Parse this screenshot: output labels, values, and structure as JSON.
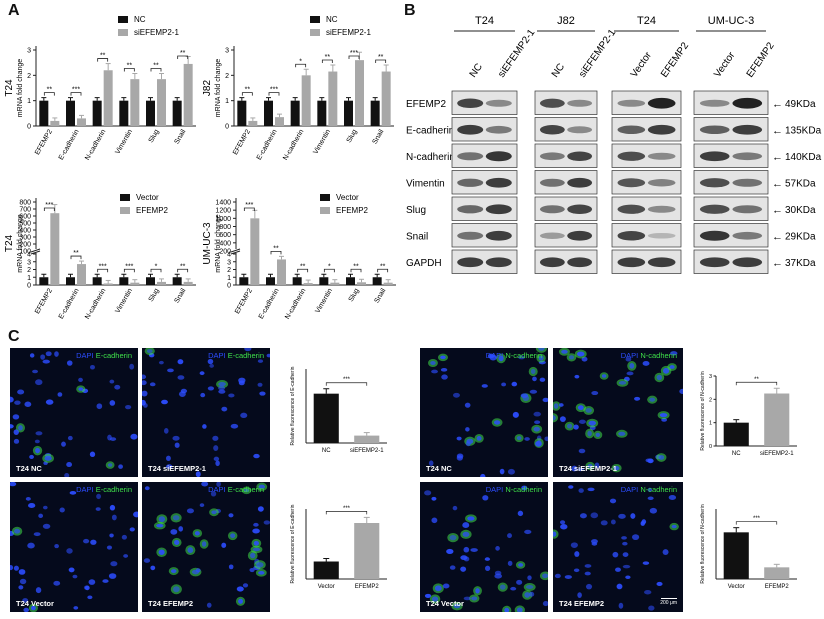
{
  "figure": {
    "panel_labels": [
      "A",
      "B",
      "C"
    ],
    "colors": {
      "black": "#111111",
      "grey": "#a8a8a8",
      "blot_bg": "#e4e4e4",
      "band": "#1a1a1a",
      "micro_bg": "#050a1c",
      "dapi": "#2c4dff",
      "marker": "#3fe04a"
    }
  },
  "chart_data": [
    {
      "type": "bar",
      "panel": "A",
      "ylabel_main": "T24",
      "ylabel": "mRNA fold change",
      "categories": [
        "EFEMP2",
        "E-cadherin",
        "N-cadherin",
        "Vimentin",
        "Slug",
        "Snail"
      ],
      "yticks": [
        "0",
        "1",
        "2",
        "3"
      ],
      "ylim": [
        0,
        3
      ],
      "series": [
        {
          "name": "NC",
          "values": [
            1.0,
            1.0,
            1.0,
            1.0,
            1.0,
            1.0
          ]
        },
        {
          "name": "siEFEMP2-1",
          "values": [
            0.2,
            0.3,
            2.2,
            1.85,
            1.85,
            2.45
          ]
        }
      ],
      "significance": [
        "**",
        "***",
        "**",
        "**",
        "**",
        "**"
      ]
    },
    {
      "type": "bar",
      "panel": "A",
      "ylabel_main": "J82",
      "ylabel": "mRNA fold change",
      "categories": [
        "EFEMP2",
        "E-cadherin",
        "N-cadherin",
        "Vimentin",
        "Slug",
        "Snail"
      ],
      "yticks": [
        "0",
        "1",
        "2",
        "3"
      ],
      "ylim": [
        0,
        3
      ],
      "series": [
        {
          "name": "NC",
          "values": [
            1.0,
            1.0,
            1.0,
            1.0,
            1.0,
            1.0
          ]
        },
        {
          "name": "siEFEMP2-1",
          "values": [
            0.2,
            0.35,
            2.0,
            2.15,
            2.6,
            2.15
          ]
        }
      ],
      "significance": [
        "**",
        "***",
        "*",
        "**",
        "***",
        "**"
      ]
    },
    {
      "type": "bar",
      "panel": "A",
      "broken_axis": true,
      "ylabel_main": "T24",
      "ylabel": "mRNA fold change",
      "categories": [
        "EFEMP2",
        "E-cadherin",
        "N-cadherin",
        "Vimentin",
        "Slug",
        "Snail"
      ],
      "yticks_low": [
        "0",
        "1",
        "2",
        "3",
        "4"
      ],
      "yticks_high": [
        "100",
        "200",
        "300",
        "400",
        "500",
        "600",
        "700",
        "800"
      ],
      "ylim": [
        0,
        800
      ],
      "series": [
        {
          "name": "Vector",
          "values": [
            1.0,
            1.0,
            1.0,
            1.0,
            1.0,
            1.0
          ]
        },
        {
          "name": "EFEMP2",
          "values": [
            640,
            2.7,
            0.2,
            0.3,
            0.4,
            0.4
          ]
        }
      ],
      "significance": [
        "***",
        "**",
        "***",
        "***",
        "*",
        "**"
      ]
    },
    {
      "type": "bar",
      "panel": "A",
      "broken_axis": true,
      "ylabel_main": "UM-UC-3",
      "ylabel": "mRNA fold change",
      "categories": [
        "EFEMP2",
        "E-cadherin",
        "N-cadherin",
        "Vimentin",
        "Slug",
        "Snail"
      ],
      "yticks_low": [
        "0",
        "1",
        "2",
        "3",
        "4"
      ],
      "yticks_high": [
        "200",
        "400",
        "600",
        "800",
        "1000",
        "1200",
        "1400"
      ],
      "ylim": [
        0,
        1400
      ],
      "series": [
        {
          "name": "Vector",
          "values": [
            1.0,
            1.0,
            1.0,
            1.0,
            1.0,
            1.0
          ]
        },
        {
          "name": "EFEMP2",
          "values": [
            1000,
            3.3,
            0.25,
            0.3,
            0.35,
            0.3
          ]
        }
      ],
      "significance": [
        "***",
        "**",
        "**",
        "*",
        "**",
        "**"
      ]
    },
    {
      "type": "bar",
      "panel": "C",
      "ylabel": "Relative fluorescence of E-cadherin",
      "categories": [
        "NC",
        "siEFEMP2-1"
      ],
      "values": [
        1.0,
        0.15
      ],
      "ylim": [
        0,
        1.5
      ],
      "significance": "***"
    },
    {
      "type": "bar",
      "panel": "C",
      "ylabel": "Relative fluorescence of N-cadherin",
      "categories": [
        "NC",
        "siEFEMP2-1"
      ],
      "yticks": [
        "0",
        "1",
        "2",
        "3"
      ],
      "values": [
        1.0,
        2.25
      ],
      "ylim": [
        0,
        3
      ],
      "significance": "**"
    },
    {
      "type": "bar",
      "panel": "C",
      "ylabel": "Relative fluorescence of E-cadherin",
      "categories": [
        "Vector",
        "EFEMP2"
      ],
      "values": [
        1.0,
        3.2
      ],
      "ylim": [
        0,
        4
      ],
      "significance": "***"
    },
    {
      "type": "bar",
      "panel": "C",
      "ylabel": "Relative fluorescence of N-cadherin",
      "categories": [
        "Vector",
        "EFEMP2"
      ],
      "values": [
        1.0,
        0.25
      ],
      "ylim": [
        0,
        1.5
      ],
      "significance": "***"
    }
  ],
  "blot": {
    "groups": [
      {
        "title": "T24",
        "lanes": [
          "NC",
          "siEFEMP2-1"
        ]
      },
      {
        "title": "J82",
        "lanes": [
          "NC",
          "siEFEMP2-1"
        ]
      },
      {
        "title": "T24",
        "lanes": [
          "Vector",
          "EFEMP2"
        ]
      },
      {
        "title": "UM-UC-3",
        "lanes": [
          "Vector",
          "EFEMP2"
        ]
      }
    ],
    "proteins": [
      "EFEMP2",
      "E-cadherin",
      "N-cadherin",
      "Vimentin",
      "Slug",
      "Snail",
      "GAPDH"
    ],
    "sizes": [
      "49KDa",
      "135KDa",
      "140KDa",
      "57KDa",
      "30KDa",
      "29KDa",
      "37KDa"
    ],
    "arrow": "←",
    "band_levels": [
      [
        [
          0.75,
          0.35
        ],
        [
          0.7,
          0.35
        ],
        [
          0.35,
          0.95
        ],
        [
          0.35,
          0.95
        ]
      ],
      [
        [
          0.8,
          0.45
        ],
        [
          0.75,
          0.35
        ],
        [
          0.6,
          0.8
        ],
        [
          0.6,
          0.8
        ]
      ],
      [
        [
          0.5,
          0.85
        ],
        [
          0.45,
          0.75
        ],
        [
          0.7,
          0.35
        ],
        [
          0.8,
          0.45
        ]
      ],
      [
        [
          0.55,
          0.8
        ],
        [
          0.5,
          0.8
        ],
        [
          0.65,
          0.4
        ],
        [
          0.7,
          0.5
        ]
      ],
      [
        [
          0.55,
          0.8
        ],
        [
          0.5,
          0.75
        ],
        [
          0.7,
          0.35
        ],
        [
          0.7,
          0.5
        ]
      ],
      [
        [
          0.5,
          0.8
        ],
        [
          0.25,
          0.8
        ],
        [
          0.75,
          0.1
        ],
        [
          0.85,
          0.45
        ]
      ],
      [
        [
          0.8,
          0.8
        ],
        [
          0.8,
          0.8
        ],
        [
          0.8,
          0.8
        ],
        [
          0.8,
          0.8
        ]
      ]
    ]
  },
  "micrographs": [
    {
      "caption": "T24 NC",
      "dapi": "DAPI",
      "marker": "E-cadherin",
      "green": 0.15
    },
    {
      "caption": "T24 siEFEMP2-1",
      "dapi": "DAPI",
      "marker": "E-cadherin",
      "green": 0.03
    },
    {
      "caption": "T24 Vector",
      "dapi": "DAPI",
      "marker": "E-cadherin",
      "green": 0.08
    },
    {
      "caption": "T24 EFEMP2",
      "dapi": "DAPI",
      "marker": "E-cadherin",
      "green": 0.4
    },
    {
      "caption": "T24 NC",
      "dapi": "DAPI",
      "marker": "N-cadherin",
      "green": 0.12
    },
    {
      "caption": "T24 siEFEMP2-1",
      "dapi": "DAPI",
      "marker": "N-cadherin",
      "green": 0.45
    },
    {
      "caption": "T24 Vector",
      "dapi": "DAPI",
      "marker": "N-cadherin",
      "green": 0.2
    },
    {
      "caption": "T24 EFEMP2",
      "dapi": "DAPI",
      "marker": "N-cadherin",
      "green": 0.03,
      "scale": "200 μm"
    }
  ]
}
